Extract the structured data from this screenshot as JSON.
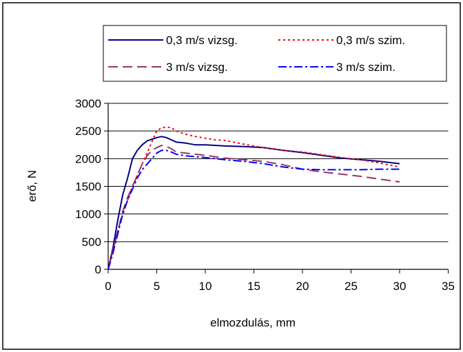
{
  "chart_data": {
    "type": "line",
    "title": "",
    "xlabel": "elmozdulás, mm",
    "ylabel": "erő, N",
    "xlim": [
      0,
      35
    ],
    "ylim": [
      0,
      3000
    ],
    "x_ticks": [
      "0",
      "5",
      "10",
      "15",
      "20",
      "25",
      "30",
      "35"
    ],
    "y_ticks": [
      "0",
      "500",
      "1000",
      "1500",
      "2000",
      "2500",
      "3000"
    ],
    "grid": "horizontal",
    "legend_position": "top",
    "series": [
      {
        "name": "0,3 m/s vizsg.",
        "color": "#000080",
        "style": "solid",
        "points": [
          [
            0,
            0
          ],
          [
            0.5,
            400
          ],
          [
            1,
            900
          ],
          [
            1.5,
            1350
          ],
          [
            2,
            1650
          ],
          [
            2.5,
            2000
          ],
          [
            3,
            2150
          ],
          [
            3.5,
            2250
          ],
          [
            4,
            2320
          ],
          [
            4.5,
            2350
          ],
          [
            5,
            2380
          ],
          [
            5.5,
            2400
          ],
          [
            6,
            2380
          ],
          [
            6.5,
            2340
          ],
          [
            7,
            2300
          ],
          [
            8,
            2280
          ],
          [
            9,
            2250
          ],
          [
            10,
            2250
          ],
          [
            12,
            2230
          ],
          [
            14,
            2220
          ],
          [
            16,
            2200
          ],
          [
            18,
            2150
          ],
          [
            20,
            2110
          ],
          [
            22,
            2060
          ],
          [
            24,
            2010
          ],
          [
            26,
            1980
          ],
          [
            28,
            1950
          ],
          [
            30,
            1910
          ]
        ]
      },
      {
        "name": "0,3 m/s szim.",
        "color": "#ff0000",
        "style": "dotted",
        "points": [
          [
            0,
            0
          ],
          [
            0.5,
            350
          ],
          [
            1,
            700
          ],
          [
            1.5,
            1000
          ],
          [
            2,
            1250
          ],
          [
            2.5,
            1500
          ],
          [
            3,
            1700
          ],
          [
            3.5,
            1900
          ],
          [
            4,
            2100
          ],
          [
            4.5,
            2300
          ],
          [
            5,
            2500
          ],
          [
            5.5,
            2560
          ],
          [
            6,
            2570
          ],
          [
            6.5,
            2560
          ],
          [
            7,
            2500
          ],
          [
            8,
            2440
          ],
          [
            9,
            2400
          ],
          [
            10,
            2370
          ],
          [
            11,
            2340
          ],
          [
            12,
            2330
          ],
          [
            14,
            2260
          ],
          [
            16,
            2200
          ],
          [
            18,
            2150
          ],
          [
            20,
            2120
          ],
          [
            22,
            2070
          ],
          [
            24,
            2020
          ],
          [
            26,
            1980
          ],
          [
            28,
            1920
          ],
          [
            30,
            1850
          ]
        ]
      },
      {
        "name": "3 m/s vizsg.",
        "color": "#993366",
        "style": "dashed",
        "points": [
          [
            0,
            0
          ],
          [
            0.5,
            350
          ],
          [
            1,
            700
          ],
          [
            1.5,
            1050
          ],
          [
            2,
            1300
          ],
          [
            2.5,
            1500
          ],
          [
            3,
            1700
          ],
          [
            3.5,
            1900
          ],
          [
            4,
            2050
          ],
          [
            4.5,
            2150
          ],
          [
            5,
            2200
          ],
          [
            5.5,
            2240
          ],
          [
            6,
            2220
          ],
          [
            6.5,
            2180
          ],
          [
            7,
            2120
          ],
          [
            8,
            2100
          ],
          [
            10,
            2060
          ],
          [
            12,
            2010
          ],
          [
            14,
            1980
          ],
          [
            16,
            1950
          ],
          [
            18,
            1890
          ],
          [
            20,
            1810
          ],
          [
            22,
            1760
          ],
          [
            24,
            1720
          ],
          [
            26,
            1680
          ],
          [
            28,
            1630
          ],
          [
            30,
            1580
          ]
        ]
      },
      {
        "name": "3 m/s szim.",
        "color": "#0000ff",
        "style": "dashdot",
        "points": [
          [
            0,
            0
          ],
          [
            0.5,
            300
          ],
          [
            1,
            650
          ],
          [
            1.5,
            1000
          ],
          [
            2,
            1250
          ],
          [
            2.5,
            1450
          ],
          [
            3,
            1650
          ],
          [
            3.5,
            1800
          ],
          [
            4,
            1900
          ],
          [
            4.5,
            2000
          ],
          [
            5,
            2100
          ],
          [
            5.5,
            2150
          ],
          [
            6,
            2150
          ],
          [
            6.5,
            2120
          ],
          [
            7,
            2080
          ],
          [
            8,
            2050
          ],
          [
            10,
            2020
          ],
          [
            12,
            1980
          ],
          [
            14,
            1950
          ],
          [
            16,
            1910
          ],
          [
            18,
            1850
          ],
          [
            20,
            1810
          ],
          [
            22,
            1800
          ],
          [
            24,
            1800
          ],
          [
            26,
            1800
          ],
          [
            28,
            1810
          ],
          [
            30,
            1810
          ]
        ]
      }
    ]
  }
}
